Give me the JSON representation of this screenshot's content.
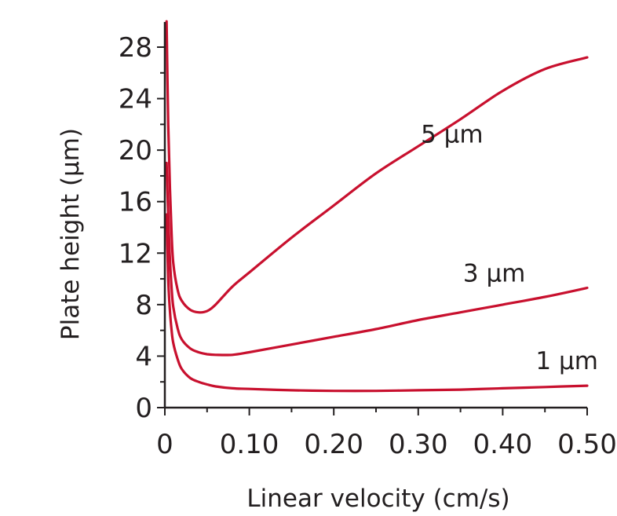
{
  "chart_data": {
    "type": "line",
    "title": "",
    "xlabel": "Linear velocity (cm/s)",
    "ylabel": "Plate height (µm)",
    "xlim": [
      0,
      0.5
    ],
    "ylim": [
      0,
      30
    ],
    "x_ticks": [
      {
        "value": 0,
        "label": "0"
      },
      {
        "value": 0.1,
        "label": "0.10"
      },
      {
        "value": 0.2,
        "label": "0.20"
      },
      {
        "value": 0.3,
        "label": "0.30"
      },
      {
        "value": 0.4,
        "label": "0.40"
      },
      {
        "value": 0.5,
        "label": "0.50"
      }
    ],
    "y_ticks": [
      {
        "value": 0,
        "label": "0"
      },
      {
        "value": 4,
        "label": "4"
      },
      {
        "value": 8,
        "label": "8"
      },
      {
        "value": 12,
        "label": "12"
      },
      {
        "value": 16,
        "label": "16"
      },
      {
        "value": 20,
        "label": "20"
      },
      {
        "value": 24,
        "label": "24"
      },
      {
        "value": 28,
        "label": "28"
      }
    ],
    "grid": false,
    "legend": "none (series labeled directly on curves)",
    "line_color": "#c8102e",
    "series": [
      {
        "name": "5 µm",
        "x": [
          0.002,
          0.004,
          0.006,
          0.008,
          0.01,
          0.015,
          0.02,
          0.03,
          0.04,
          0.05,
          0.06,
          0.08,
          0.1,
          0.15,
          0.2,
          0.25,
          0.3,
          0.35,
          0.4,
          0.45,
          0.5
        ],
        "y": [
          30,
          22,
          17,
          13.5,
          11.2,
          9.2,
          8.3,
          7.6,
          7.4,
          7.5,
          8.0,
          9.4,
          10.5,
          13.2,
          15.7,
          18.2,
          20.3,
          22.4,
          24.6,
          26.3,
          27.2
        ]
      },
      {
        "name": "3 µm",
        "x": [
          0.002,
          0.004,
          0.006,
          0.008,
          0.01,
          0.015,
          0.02,
          0.03,
          0.04,
          0.05,
          0.06,
          0.08,
          0.1,
          0.15,
          0.2,
          0.25,
          0.3,
          0.35,
          0.4,
          0.45,
          0.5
        ],
        "y": [
          19,
          15,
          11.5,
          9.3,
          7.8,
          6.2,
          5.3,
          4.6,
          4.3,
          4.15,
          4.1,
          4.1,
          4.3,
          4.9,
          5.5,
          6.1,
          6.8,
          7.4,
          8.0,
          8.6,
          9.3
        ]
      },
      {
        "name": "1 µm",
        "x": [
          0.002,
          0.004,
          0.006,
          0.008,
          0.01,
          0.015,
          0.02,
          0.03,
          0.04,
          0.05,
          0.06,
          0.08,
          0.1,
          0.15,
          0.2,
          0.25,
          0.3,
          0.35,
          0.4,
          0.45,
          0.5
        ],
        "y": [
          15,
          10,
          7.5,
          6.0,
          5.0,
          3.8,
          3.0,
          2.3,
          2.0,
          1.8,
          1.65,
          1.5,
          1.45,
          1.35,
          1.3,
          1.3,
          1.35,
          1.4,
          1.5,
          1.6,
          1.7
        ]
      }
    ]
  }
}
